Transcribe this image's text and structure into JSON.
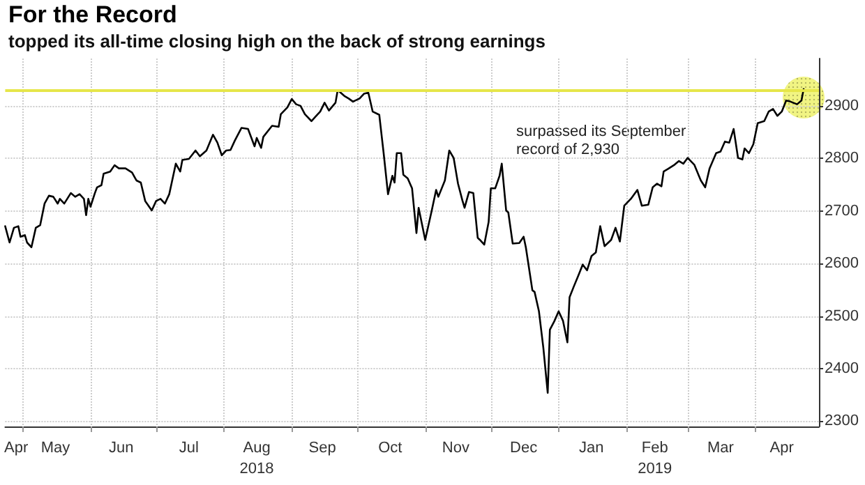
{
  "chart_data": {
    "type": "line",
    "title": "For the Record",
    "subtitle": "topped its all-time closing high on the back of strong earnings",
    "annotations": [
      "surpassed its September record of 2,930"
    ],
    "x": [
      "2018-04-23",
      "2018-04-25",
      "2018-04-27",
      "2018-04-29",
      "2018-04-30",
      "2018-05-02",
      "2018-05-03",
      "2018-05-05",
      "2018-05-07",
      "2018-05-09",
      "2018-05-11",
      "2018-05-13",
      "2018-05-15",
      "2018-05-17",
      "2018-05-18",
      "2018-05-20",
      "2018-05-23",
      "2018-05-25",
      "2018-05-27",
      "2018-05-29",
      "2018-05-30",
      "2018-05-31",
      "2018-06-01",
      "2018-06-03",
      "2018-06-04",
      "2018-06-06",
      "2018-06-07",
      "2018-06-10",
      "2018-06-12",
      "2018-06-14",
      "2018-06-17",
      "2018-06-20",
      "2018-06-22",
      "2018-06-24",
      "2018-06-26",
      "2018-06-29",
      "2018-07-01",
      "2018-07-03",
      "2018-07-05",
      "2018-07-07",
      "2018-07-10",
      "2018-07-12",
      "2018-07-13",
      "2018-07-16",
      "2018-07-19",
      "2018-07-21",
      "2018-07-24",
      "2018-07-27",
      "2018-07-29",
      "2018-07-31",
      "2018-08-02",
      "2018-08-04",
      "2018-08-06",
      "2018-08-09",
      "2018-08-12",
      "2018-08-15",
      "2018-08-16",
      "2018-08-18",
      "2018-08-19",
      "2018-08-23",
      "2018-08-26",
      "2018-08-27",
      "2018-08-30",
      "2018-09-01",
      "2018-09-03",
      "2018-09-05",
      "2018-09-07",
      "2018-09-10",
      "2018-09-12",
      "2018-09-14",
      "2018-09-16",
      "2018-09-18",
      "2018-09-21",
      "2018-09-22",
      "2018-09-25",
      "2018-09-27",
      "2018-09-29",
      "2018-10-02",
      "2018-10-04",
      "2018-10-06",
      "2018-10-08",
      "2018-10-11",
      "2018-10-13",
      "2018-10-15",
      "2018-10-17",
      "2018-10-18",
      "2018-10-19",
      "2018-10-21",
      "2018-10-22",
      "2018-10-24",
      "2018-10-26",
      "2018-10-28",
      "2018-10-29",
      "2018-11-01",
      "2018-11-04",
      "2018-11-06",
      "2018-11-07",
      "2018-11-10",
      "2018-11-12",
      "2018-11-14",
      "2018-11-16",
      "2018-11-18",
      "2018-11-19",
      "2018-11-21",
      "2018-11-23",
      "2018-11-25",
      "2018-11-26",
      "2018-11-28",
      "2018-11-30",
      "2018-12-01",
      "2018-12-03",
      "2018-12-05",
      "2018-12-06",
      "2018-12-08",
      "2018-12-09",
      "2018-12-11",
      "2018-12-14",
      "2018-12-16",
      "2018-12-17",
      "2018-12-20",
      "2018-12-21",
      "2018-12-23",
      "2018-12-25",
      "2018-12-27",
      "2018-12-28",
      "2018-12-30",
      "2019-01-01",
      "2019-01-03",
      "2019-01-05",
      "2019-01-06",
      "2019-01-08",
      "2019-01-10",
      "2019-01-12",
      "2019-01-14",
      "2019-01-16",
      "2019-01-18",
      "2019-01-20",
      "2019-01-22",
      "2019-01-25",
      "2019-01-27",
      "2019-01-29",
      "2019-01-31",
      "2019-02-03",
      "2019-02-06",
      "2019-02-08",
      "2019-02-11",
      "2019-02-13",
      "2019-02-15",
      "2019-02-17",
      "2019-02-18",
      "2019-02-20",
      "2019-02-23",
      "2019-02-25",
      "2019-02-27",
      "2019-03-01",
      "2019-03-04",
      "2019-03-07",
      "2019-03-09",
      "2019-03-11",
      "2019-03-14",
      "2019-03-16",
      "2019-03-18",
      "2019-03-20",
      "2019-03-22",
      "2019-03-24",
      "2019-03-26",
      "2019-03-27",
      "2019-03-29",
      "2019-03-31",
      "2019-04-02",
      "2019-04-05",
      "2019-04-07",
      "2019-04-09",
      "2019-04-11",
      "2019-04-13",
      "2019-04-15",
      "2019-04-17",
      "2019-04-20",
      "2019-04-22",
      "2019-04-23"
    ],
    "series": [
      {
        "color": "#000000",
        "values": [
          2671,
          2640,
          2668,
          2671,
          2651,
          2654,
          2640,
          2631,
          2668,
          2673,
          2714,
          2729,
          2727,
          2714,
          2723,
          2714,
          2734,
          2727,
          2732,
          2723,
          2692,
          2723,
          2708,
          2734,
          2745,
          2749,
          2771,
          2775,
          2787,
          2781,
          2781,
          2773,
          2758,
          2754,
          2719,
          2701,
          2719,
          2723,
          2714,
          2732,
          2790,
          2775,
          2797,
          2799,
          2815,
          2804,
          2815,
          2845,
          2830,
          2806,
          2815,
          2816,
          2834,
          2858,
          2856,
          2823,
          2839,
          2820,
          2841,
          2862,
          2860,
          2884,
          2897,
          2913,
          2903,
          2900,
          2884,
          2871,
          2880,
          2889,
          2906,
          2891,
          2906,
          2930,
          2919,
          2914,
          2908,
          2914,
          2923,
          2925,
          2889,
          2883,
          2810,
          2732,
          2767,
          2754,
          2810,
          2810,
          2769,
          2762,
          2743,
          2658,
          2706,
          2645,
          2701,
          2740,
          2727,
          2758,
          2815,
          2801,
          2752,
          2720,
          2706,
          2736,
          2734,
          2649,
          2645,
          2636,
          2679,
          2743,
          2743,
          2767,
          2790,
          2701,
          2697,
          2638,
          2639,
          2651,
          2631,
          2549,
          2546,
          2509,
          2440,
          2354,
          2474,
          2490,
          2509,
          2491,
          2450,
          2536,
          2557,
          2577,
          2598,
          2587,
          2614,
          2621,
          2671,
          2633,
          2645,
          2668,
          2642,
          2710,
          2723,
          2740,
          2710,
          2712,
          2745,
          2752,
          2747,
          2775,
          2780,
          2788,
          2795,
          2790,
          2801,
          2788,
          2758,
          2745,
          2781,
          2810,
          2813,
          2832,
          2830,
          2856,
          2801,
          2798,
          2819,
          2810,
          2827,
          2867,
          2871,
          2889,
          2894,
          2881,
          2889,
          2910,
          2908,
          2903,
          2910,
          2932
        ]
      }
    ],
    "xlim": [
      "2018-04-23",
      "2019-04-30"
    ],
    "xticks": [
      {
        "value": "2018-04-28",
        "label": "Apr"
      },
      {
        "value": "2018-05-01",
        "label": null
      },
      {
        "value": "2018-05-16",
        "label": "May"
      },
      {
        "value": "2018-06-01",
        "label": null
      },
      {
        "value": "2018-06-15",
        "label": "Jun"
      },
      {
        "value": "2018-07-01",
        "label": null
      },
      {
        "value": "2018-07-16",
        "label": "Jul"
      },
      {
        "value": "2018-08-01",
        "label": null
      },
      {
        "value": "2018-08-16",
        "label": "Aug\n2018"
      },
      {
        "value": "2018-09-01",
        "label": null
      },
      {
        "value": "2018-09-15",
        "label": "Sep"
      },
      {
        "value": "2018-10-01",
        "label": null
      },
      {
        "value": "2018-10-16",
        "label": "Oct"
      },
      {
        "value": "2018-11-01",
        "label": null
      },
      {
        "value": "2018-11-15",
        "label": "Nov"
      },
      {
        "value": "2018-12-01",
        "label": null
      },
      {
        "value": "2018-12-16",
        "label": "Dec"
      },
      {
        "value": "2019-01-01",
        "label": null
      },
      {
        "value": "2019-01-16",
        "label": "Jan"
      },
      {
        "value": "2019-02-01",
        "label": null
      },
      {
        "value": "2019-02-14",
        "label": "Feb\n2019"
      },
      {
        "value": "2019-03-01",
        "label": null
      },
      {
        "value": "2019-03-16",
        "label": "Mar"
      },
      {
        "value": "2019-04-01",
        "label": null
      },
      {
        "value": "2019-04-13",
        "label": "Apr"
      }
    ],
    "ylim": [
      2290,
      2990
    ],
    "yticks": [
      2300,
      2400,
      2500,
      2600,
      2700,
      2800,
      2900
    ],
    "ref_lines": [
      {
        "axis": "y",
        "value": 2930,
        "color": "#e6e64a"
      }
    ],
    "grid": true
  }
}
